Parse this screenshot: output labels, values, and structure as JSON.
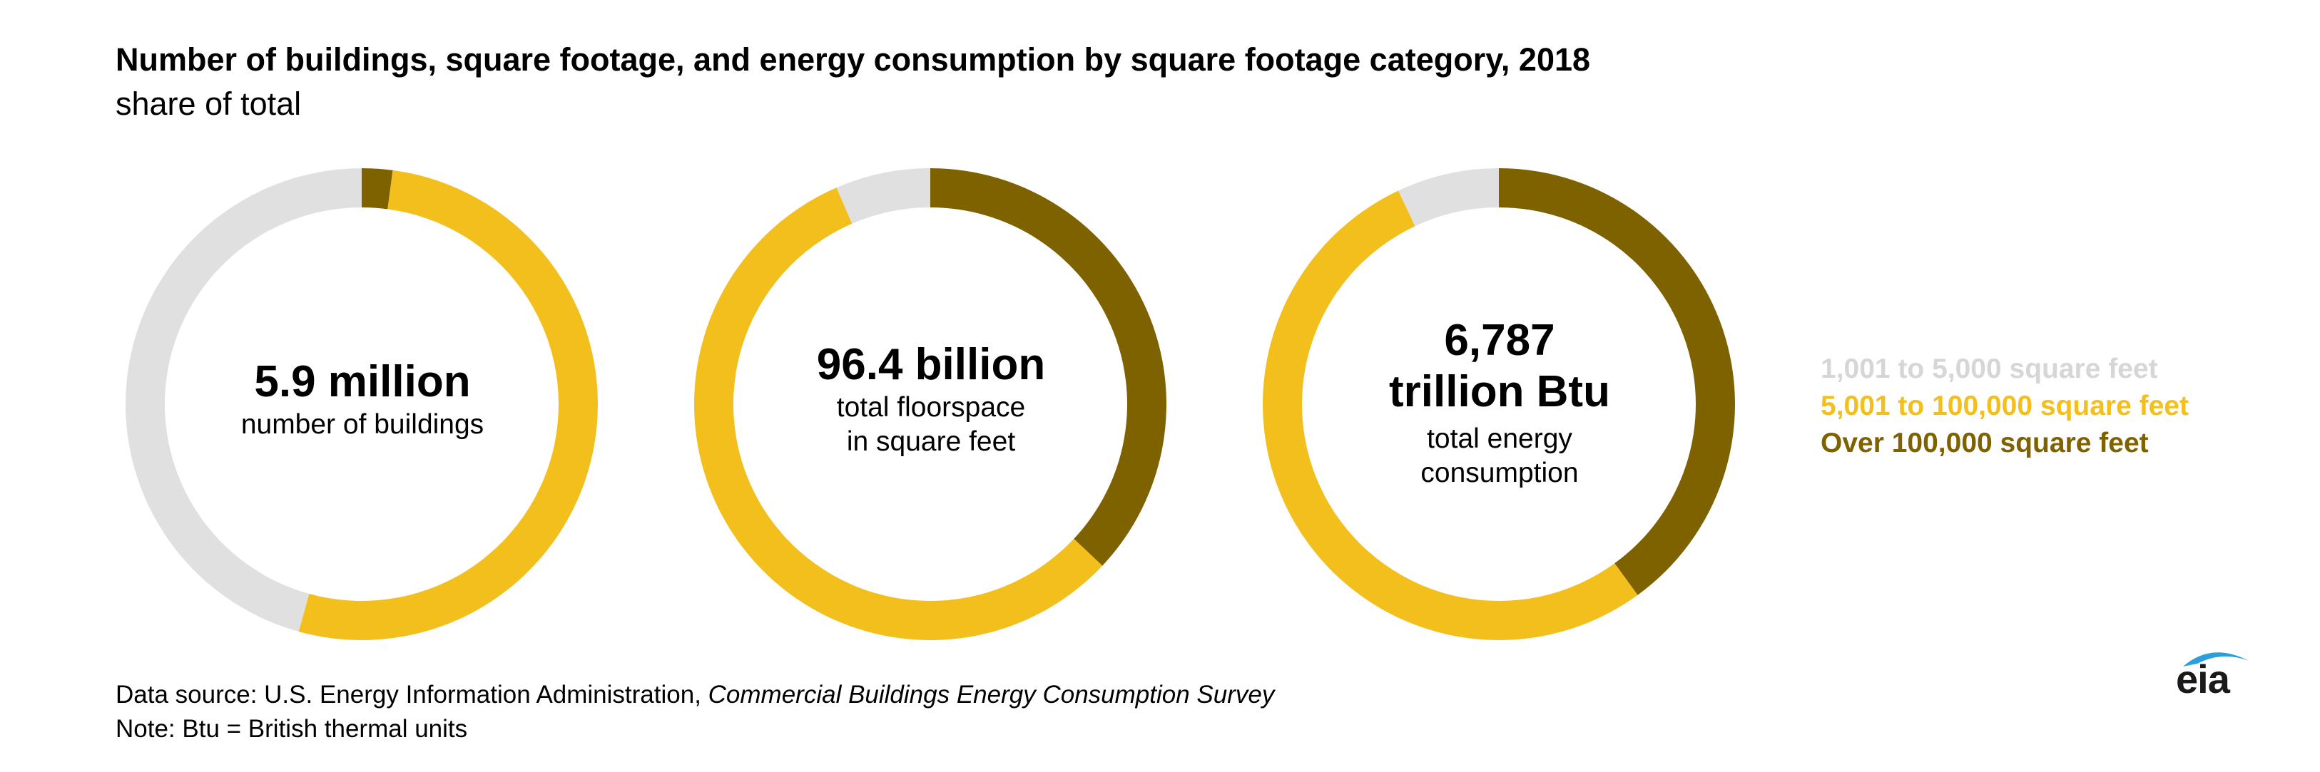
{
  "title": "Number of buildings, square footage, and energy consumption by square footage category, 2018",
  "subtitle": "share of total",
  "chart_data": [
    {
      "type": "pie",
      "donut": true,
      "center_value": "5.9 million",
      "center_label_lines": [
        "number of buildings"
      ],
      "categories": [
        "1,001 to 5,000 square feet",
        "5,001 to 100,000 square feet",
        "Over 100,000 square feet"
      ],
      "values": [
        45.7,
        52.2,
        2.1
      ]
    },
    {
      "type": "pie",
      "donut": true,
      "center_value": "96.4 billion",
      "center_label_lines": [
        "total floorspace",
        "in square feet"
      ],
      "categories": [
        "1,001 to 5,000 square feet",
        "5,001 to 100,000 square feet",
        "Over 100,000 square feet"
      ],
      "values": [
        6.5,
        56.5,
        37.0
      ]
    },
    {
      "type": "pie",
      "donut": true,
      "center_value_lines": [
        "6,787",
        "trillion Btu"
      ],
      "center_label_lines": [
        "total energy",
        "consumption"
      ],
      "categories": [
        "1,001 to 5,000 square feet",
        "5,001 to 100,000 square feet",
        "Over 100,000 square feet"
      ],
      "values": [
        7.0,
        53.0,
        40.0
      ]
    }
  ],
  "legend": {
    "position": "right",
    "items": [
      {
        "label": "1,001 to 5,000 square feet",
        "color": "#e0e0e0"
      },
      {
        "label": "5,001 to 100,000 square feet",
        "color": "#f3bf1d"
      },
      {
        "label": "Over 100,000 square feet",
        "color": "#7f6200"
      }
    ]
  },
  "source": {
    "prefix": "Data source: U.S. Energy Information Administration, ",
    "italic": "Commercial Buildings Energy Consumption Survey"
  },
  "note": "Note: Btu = British thermal units",
  "logo": {
    "text": "eia",
    "name": "eia-logo",
    "accent_color": "#2a9fd8"
  }
}
